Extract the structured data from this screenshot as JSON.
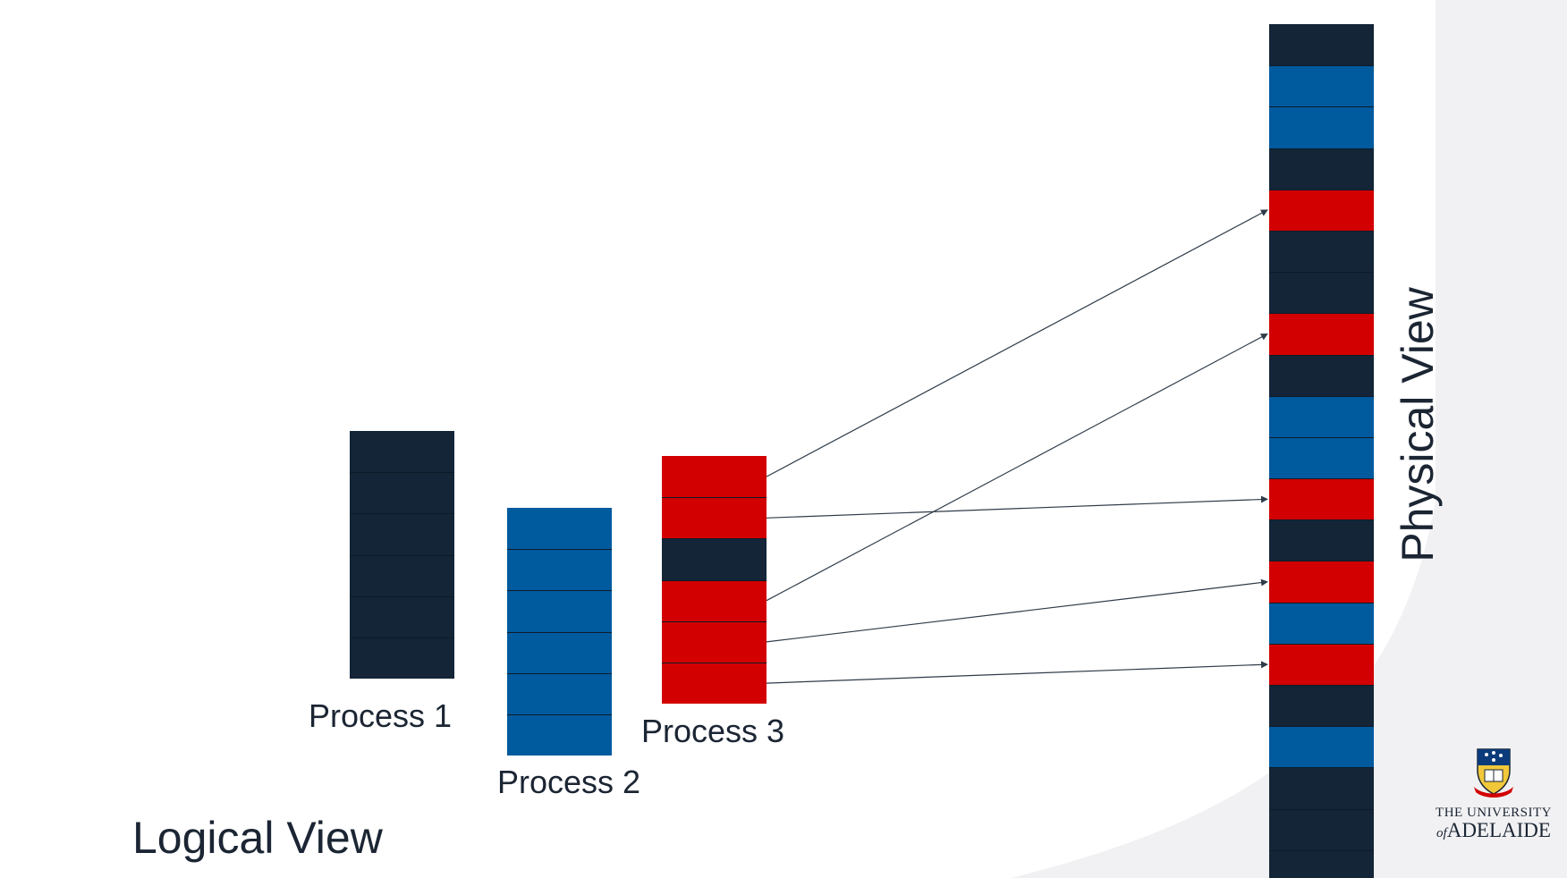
{
  "colors": {
    "navy": "#132537",
    "blue": "#005a9e",
    "red": "#d20000",
    "divider": "#0d1b29",
    "arrow": "#2e3b48",
    "text": "#1b2533",
    "slide_bg_shape": "#f1f1f3"
  },
  "logical_view": {
    "title": "Logical View",
    "processes": [
      {
        "label": "Process 1",
        "pages": [
          "navy",
          "navy",
          "navy",
          "navy",
          "navy",
          "navy"
        ]
      },
      {
        "label": "Process 2",
        "pages": [
          "blue",
          "blue",
          "blue",
          "blue",
          "blue",
          "blue"
        ]
      },
      {
        "label": "Process 3",
        "pages": [
          "red",
          "red",
          "navy",
          "red",
          "red",
          "red"
        ]
      }
    ]
  },
  "physical_view": {
    "title": "Physical View",
    "frames": [
      "navy",
      "blue",
      "blue",
      "navy",
      "red",
      "navy",
      "navy",
      "red",
      "navy",
      "blue",
      "blue",
      "red",
      "navy",
      "red",
      "blue",
      "red",
      "navy",
      "blue",
      "navy",
      "navy",
      "navy"
    ]
  },
  "mappings": [
    {
      "from_page": 0,
      "to_frame": 4
    },
    {
      "from_page": 1,
      "to_frame": 11
    },
    {
      "from_page": 3,
      "to_frame": 7
    },
    {
      "from_page": 4,
      "to_frame": 13
    },
    {
      "from_page": 5,
      "to_frame": 15
    }
  ],
  "logo": {
    "name": "university-crest-icon",
    "line1": "THE UNIVERSITY",
    "of_prefix": "of",
    "line2": "ADELAIDE"
  }
}
